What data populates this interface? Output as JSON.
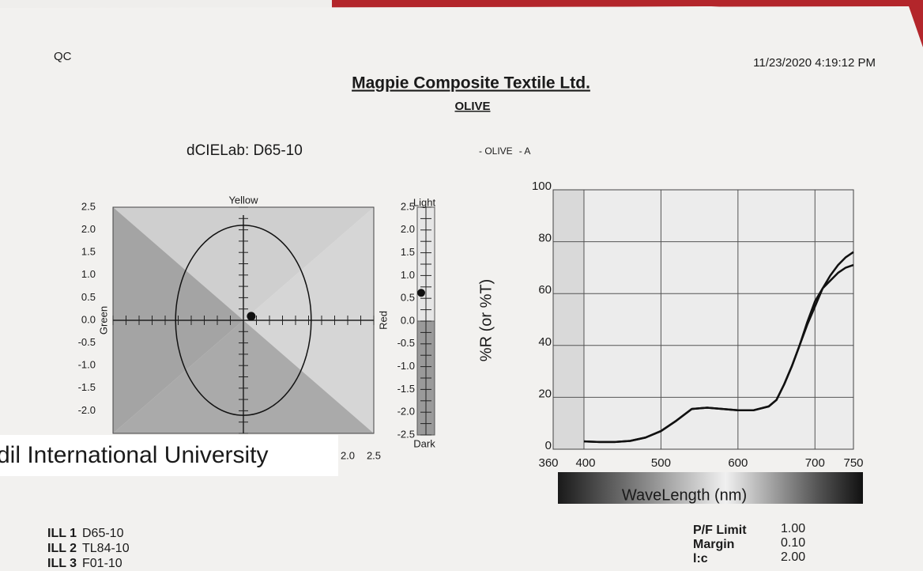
{
  "header": {
    "qc": "QC",
    "datetime": "11/23/2020 4:19:12 PM",
    "company": "Magpie Composite Textile Ltd.",
    "standard": "OLIVE"
  },
  "chart_data": [
    {
      "type": "scatter",
      "title": "dCIELab: D65-10",
      "top_label": "Yellow",
      "left_label": "Green",
      "right_label": "Red",
      "xlim": [
        -2.5,
        2.5
      ],
      "ylim": [
        -2.5,
        2.5
      ],
      "xticks": [
        {
          "value": 2,
          "label": "2.0"
        },
        {
          "value": 2.5,
          "label": "2.5"
        }
      ],
      "yticks": [
        {
          "value": 2.5,
          "label": "2.5"
        },
        {
          "value": 2,
          "label": "2.0"
        },
        {
          "value": 1.5,
          "label": "1.5"
        },
        {
          "value": 1,
          "label": "1.0"
        },
        {
          "value": 0.5,
          "label": "0.5"
        },
        {
          "value": 0,
          "label": "0.0"
        },
        {
          "value": -0.5,
          "label": "-0.5"
        },
        {
          "value": -1,
          "label": "-1.0"
        },
        {
          "value": -1.5,
          "label": "-1.5"
        },
        {
          "value": -2,
          "label": "-2.0"
        }
      ],
      "x": [
        0.15
      ],
      "values": [
        0.09
      ],
      "ellipse_radii": [
        1.3,
        2.1
      ]
    },
    {
      "type": "strip",
      "top_label": "Light",
      "bottom_label": "Dark",
      "ylim": [
        -2.5,
        2.5
      ],
      "yticks": [
        {
          "value": 2.5,
          "label": "2.5"
        },
        {
          "value": 2,
          "label": "2.0"
        },
        {
          "value": 1.5,
          "label": "1.5"
        },
        {
          "value": 1,
          "label": "1.0"
        },
        {
          "value": 0.5,
          "label": "0.5"
        },
        {
          "value": 0,
          "label": "0.0"
        },
        {
          "value": -0.5,
          "label": "-0.5"
        },
        {
          "value": -1,
          "label": "-1.0"
        },
        {
          "value": -1.5,
          "label": "-1.5"
        },
        {
          "value": -2,
          "label": "-2.0"
        },
        {
          "value": -2.5,
          "label": "-2.5"
        }
      ],
      "values": [
        0.62
      ]
    },
    {
      "type": "line",
      "ylabel": "%R (or %T)",
      "xlabel": "WaveLength (nm)",
      "grid": true,
      "xlim": [
        360,
        750
      ],
      "ylim": [
        0,
        100
      ],
      "xticks": [
        360,
        400,
        500,
        600,
        700,
        750
      ],
      "yticks": [
        0,
        20,
        40,
        60,
        80,
        100
      ],
      "x": [
        400,
        420,
        440,
        460,
        480,
        500,
        520,
        540,
        560,
        580,
        600,
        620,
        640,
        650,
        660,
        670,
        680,
        690,
        700,
        710,
        720,
        730,
        740,
        750
      ],
      "series": [
        {
          "name": "- OLIVE",
          "color": "#111111",
          "values": [
            3,
            2.8,
            2.8,
            3.2,
            4.5,
            7,
            11,
            15.5,
            16,
            15.5,
            15,
            15,
            16.5,
            19,
            25,
            32,
            40,
            48,
            55,
            62,
            67,
            71,
            74,
            76
          ]
        },
        {
          "name": "- A",
          "color": "#111111",
          "values": [
            3,
            2.8,
            2.8,
            3.2,
            4.5,
            7,
            11,
            15.5,
            16,
            15.5,
            15,
            15,
            16.5,
            19,
            25,
            32,
            40,
            49,
            57,
            62,
            65,
            68,
            70,
            71
          ]
        }
      ]
    }
  ],
  "overlay": {
    "text": "dil International University"
  },
  "illuminants": [
    {
      "label": "ILL 1",
      "value": "D65-10"
    },
    {
      "label": "ILL 2",
      "value": "TL84-10"
    },
    {
      "label": "ILL 3",
      "value": "F01-10"
    }
  ],
  "settings": [
    {
      "label": "P/F Limit",
      "value": "1.00"
    },
    {
      "label": "Margin",
      "value": "0.10"
    },
    {
      "label": "l:c",
      "value": "2.00"
    }
  ]
}
